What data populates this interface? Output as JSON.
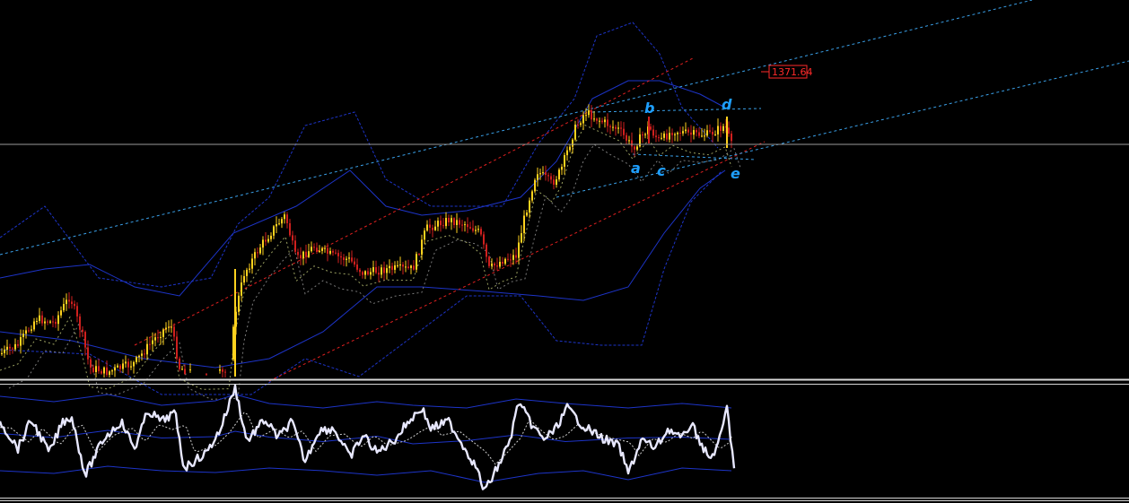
{
  "chart_data": {
    "type": "candlestick",
    "title": "",
    "xlabel": "",
    "ylabel": "",
    "current_price_tag": "1371.64",
    "wave_labels": [
      "a",
      "b",
      "c",
      "d",
      "e"
    ],
    "panels": [
      {
        "name": "price",
        "indicators": [
          "bollinger-bands",
          "trend-channel",
          "moving-averages"
        ]
      },
      {
        "name": "oscillator",
        "indicators": [
          "oscillator-line",
          "signal-line",
          "envelope-bands"
        ]
      }
    ],
    "grid": false,
    "colors": {
      "background": "#000000",
      "bull_candle": "#ffd21e",
      "bear_candle": "#d0201e",
      "channel_red": "#e02020",
      "channel_blue": "#3aa0e8",
      "band_blue": "#1d34c8",
      "osc_line": "#e8e8ff",
      "label_blue": "#1e9fff"
    }
  }
}
